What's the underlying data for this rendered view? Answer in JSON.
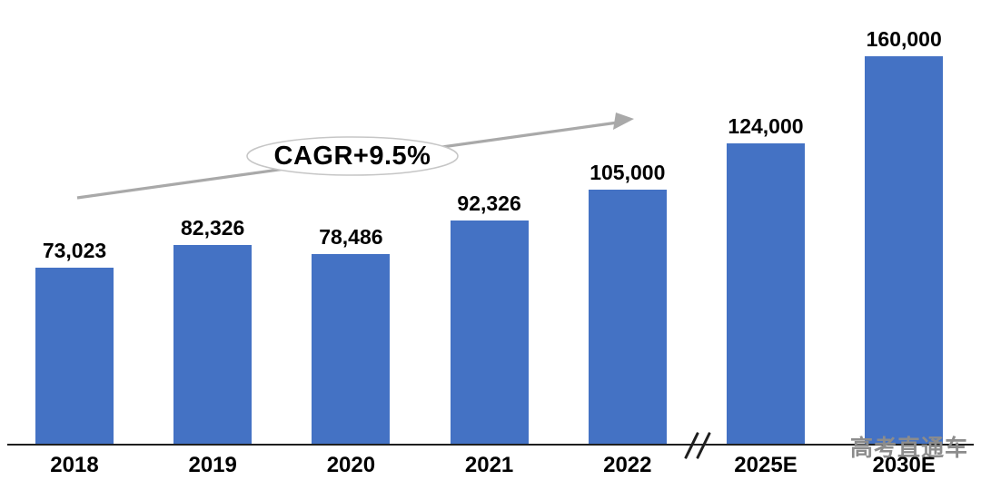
{
  "chart_data": {
    "type": "bar",
    "categories": [
      "2018",
      "2019",
      "2020",
      "2021",
      "2022",
      "2025E",
      "2030E"
    ],
    "values": [
      73023,
      82326,
      78486,
      92326,
      105000,
      124000,
      160000
    ],
    "value_labels": [
      "73,023",
      "82,326",
      "78,486",
      "92,326",
      "105,000",
      "124,000",
      "160,000"
    ],
    "title": "",
    "xlabel": "",
    "ylabel": "",
    "ylim": [
      0,
      160000
    ],
    "grid": false,
    "legend": "none",
    "y_axis_visible": false,
    "annotations": {
      "cagr_label": "CAGR+9.5%",
      "axis_break_symbol": "//",
      "trend_arrow": "rising left-to-right"
    },
    "colors": {
      "bar": "#4472C4",
      "arrow": "#A9A9A9",
      "ellipse_fill": "#FFFFFF",
      "ellipse_stroke": "#C6C6C6",
      "axis": "#1F1F1F",
      "label_text": "#000000",
      "watermark": "#8C8C8C"
    }
  },
  "watermark": {
    "text": "高考直通车"
  }
}
